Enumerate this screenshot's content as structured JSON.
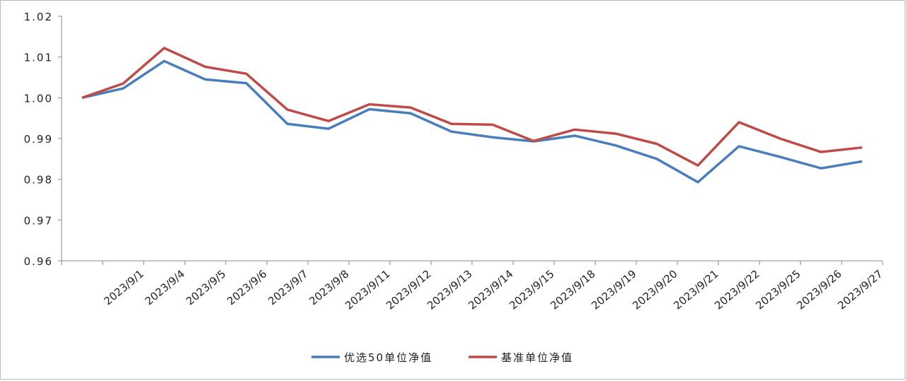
{
  "chart_data": {
    "type": "line",
    "categories": [
      null,
      "2023/9/1",
      "2023/9/4",
      "2023/9/5",
      "2023/9/6",
      "2023/9/7",
      "2023/9/8",
      "2023/9/11",
      "2023/9/12",
      "2023/9/13",
      "2023/9/14",
      "2023/9/15",
      "2023/9/18",
      "2023/9/19",
      "2023/9/20",
      "2023/9/21",
      "2023/9/22",
      "2023/9/25",
      "2023/9/26",
      "2023/9/27"
    ],
    "series": [
      {
        "name": "优选50单位净值",
        "color": "#4a7ebb",
        "values": [
          1.0,
          1.0023,
          1.009,
          1.0045,
          1.0036,
          0.9936,
          0.9924,
          0.9972,
          0.9962,
          0.9917,
          0.9903,
          0.9893,
          0.9907,
          0.9883,
          0.985,
          0.9793,
          0.9881,
          0.9855,
          0.9827,
          0.9844
        ]
      },
      {
        "name": "基准单位净值",
        "color": "#be4b48",
        "values": [
          1.0,
          1.0035,
          1.0122,
          1.0076,
          1.0059,
          0.9971,
          0.9943,
          0.9984,
          0.9976,
          0.9936,
          0.9934,
          0.9894,
          0.9922,
          0.9912,
          0.9887,
          0.9834,
          0.994,
          0.99,
          0.9867,
          0.9878
        ]
      }
    ],
    "ylim": [
      0.96,
      1.02
    ],
    "yticks": [
      0.96,
      0.97,
      0.98,
      0.99,
      {
        "value": 1,
        "label": "1.00"
      },
      1.01,
      1.02
    ],
    "legend": "bottom"
  }
}
